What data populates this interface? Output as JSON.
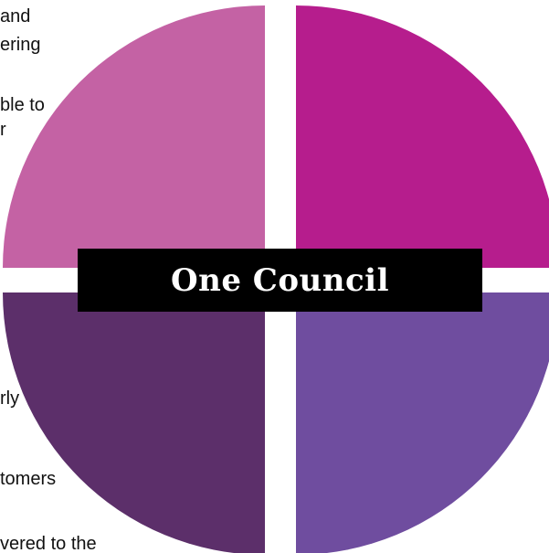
{
  "center_label": "One Council",
  "colors": {
    "top_left": "#c462a4",
    "top_right": "#b61d8d",
    "bottom_left": "#5c2f6a",
    "bottom_right": "#6f4d9f",
    "banner": "#000000",
    "banner_text": "#ffffff",
    "gap": "#ffffff"
  },
  "left_text_fragments": [
    "and",
    "ering",
    "ble to",
    "r",
    "rly",
    "tomers",
    "vered to the"
  ]
}
